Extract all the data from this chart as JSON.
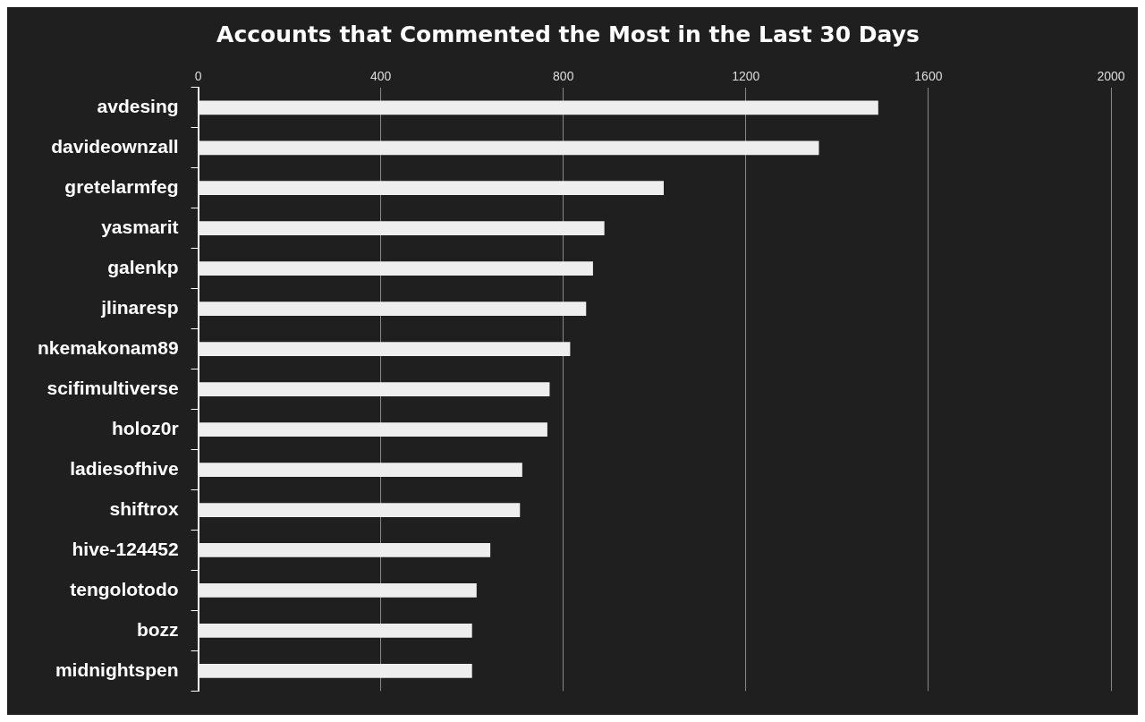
{
  "chart_data": {
    "type": "bar",
    "orientation": "horizontal",
    "title": "Accounts that Commented the Most in the Last 30 Days",
    "categories": [
      "avdesing",
      "davideownzall",
      "gretelarmfeg",
      "yasmarit",
      "galenkp",
      "jlinaresp",
      "nkemakonam89",
      "scifimultiverse",
      "holoz0r",
      "ladiesofhive",
      "shiftrox",
      "hive-124452",
      "tengolotodo",
      "bozz",
      "midnightspen"
    ],
    "values": [
      1490,
      1360,
      1020,
      890,
      865,
      850,
      815,
      770,
      765,
      710,
      705,
      640,
      610,
      600,
      600
    ],
    "color": "#eeeeee",
    "xlim": [
      0,
      2000
    ],
    "xticks": [
      0,
      400,
      800,
      1200,
      1600,
      2000
    ],
    "grid": "x",
    "legend": false
  }
}
